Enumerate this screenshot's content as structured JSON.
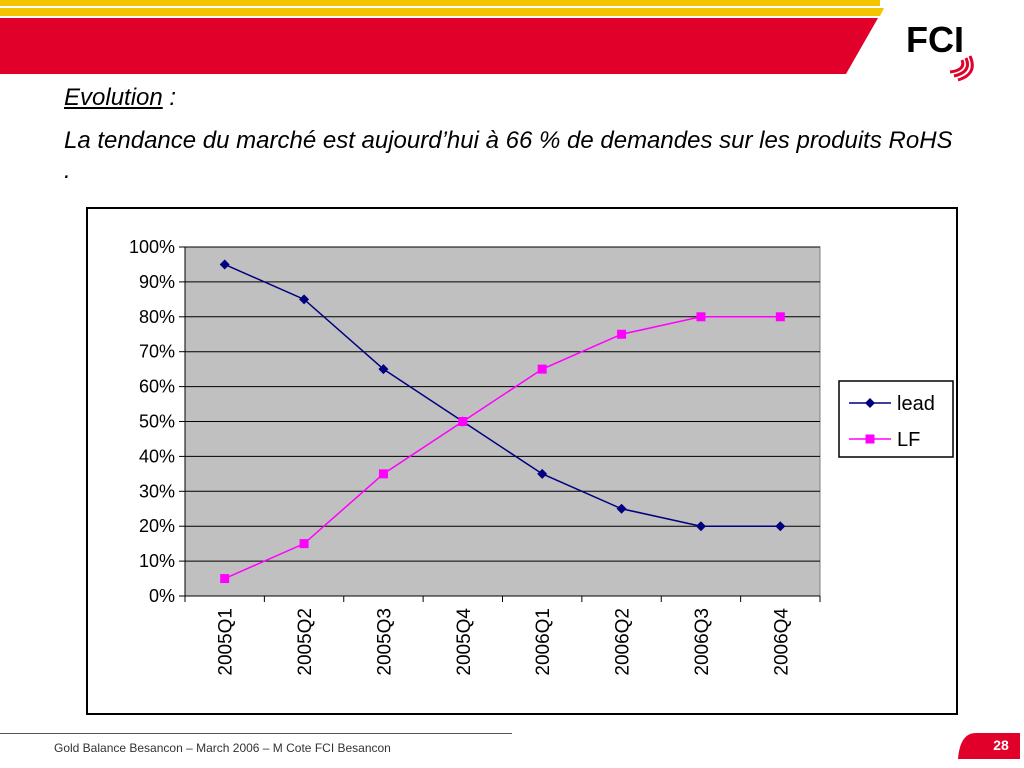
{
  "slide": {
    "heading": "Evolution",
    "heading_suffix": " :",
    "body": "La tendance du marché est aujourd’hui à 66 % de demandes sur les produits RoHS .",
    "footer": "Gold Balance Besancon – March 2006 – M Cote FCI Besancon",
    "page_number": "28",
    "logo_text": "FCI"
  },
  "colors": {
    "banner_red": "#e0002a",
    "banner_yellow": "#f5c400",
    "plot_background": "#c0c0c0",
    "lead": "#000080",
    "lf": "#ff00ff"
  },
  "chart_data": {
    "type": "line",
    "categories": [
      "2005Q1",
      "2005Q2",
      "2005Q3",
      "2005Q4",
      "2006Q1",
      "2006Q2",
      "2006Q3",
      "2006Q4"
    ],
    "series": [
      {
        "name": "lead",
        "values": [
          95,
          85,
          65,
          50,
          35,
          25,
          20,
          20
        ],
        "marker": "diamond",
        "color": "#000080"
      },
      {
        "name": "LF",
        "values": [
          5,
          15,
          35,
          50,
          65,
          75,
          80,
          80
        ],
        "marker": "square",
        "color": "#ff00ff"
      }
    ],
    "yticks": [
      "0%",
      "10%",
      "20%",
      "30%",
      "40%",
      "50%",
      "60%",
      "70%",
      "80%",
      "90%",
      "100%"
    ],
    "ylim": [
      0,
      100
    ],
    "grid": true,
    "legend": "right"
  }
}
